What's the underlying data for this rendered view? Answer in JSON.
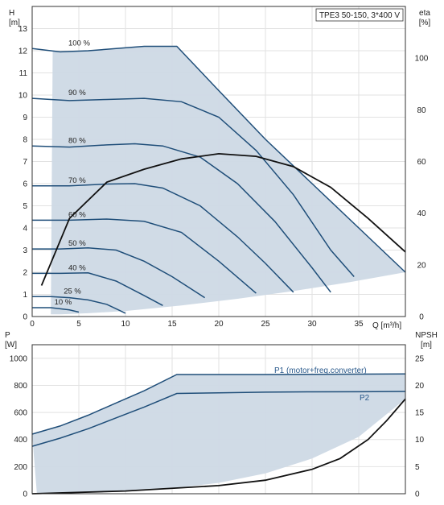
{
  "chart_data": [
    {
      "type": "line",
      "legend_box": "TPE3 50-150, 3*400 V",
      "y_label": "H",
      "y_unit": "[m]",
      "y2_label": "eta",
      "y2_unit": "[%]",
      "x_label": "Q [m³/h]",
      "xlim": [
        0,
        40
      ],
      "ylim": [
        0,
        14
      ],
      "y2lim": [
        0,
        120
      ],
      "x_ticks": [
        0,
        5,
        10,
        15,
        20,
        25,
        30,
        35
      ],
      "y_ticks": [
        0,
        1,
        2,
        3,
        4,
        5,
        6,
        7,
        8,
        9,
        10,
        11,
        12,
        13
      ],
      "y2_ticks": [
        0,
        20,
        40,
        60,
        80,
        100
      ],
      "grid": true,
      "series": [
        {
          "name": "100 %",
          "x": [
            0,
            3,
            6,
            9,
            12,
            15.5,
            20,
            25,
            30,
            35,
            40
          ],
          "y": [
            12.1,
            11.95,
            12.0,
            12.1,
            12.2,
            12.2,
            10.2,
            8.0,
            6.0,
            4.0,
            2.0
          ]
        },
        {
          "name": "90 %",
          "x": [
            0,
            4,
            8,
            12,
            16,
            20,
            24,
            28,
            32,
            34.5
          ],
          "y": [
            9.85,
            9.75,
            9.8,
            9.85,
            9.7,
            9.0,
            7.5,
            5.5,
            3.0,
            1.8
          ]
        },
        {
          "name": "80 %",
          "x": [
            0,
            4,
            8,
            11,
            14,
            18,
            22,
            26,
            30,
            32
          ],
          "y": [
            7.7,
            7.65,
            7.75,
            7.8,
            7.7,
            7.2,
            6.0,
            4.3,
            2.2,
            1.1
          ]
        },
        {
          "name": "70 %",
          "x": [
            0,
            4,
            8,
            11,
            14,
            18,
            22,
            25,
            28
          ],
          "y": [
            5.9,
            5.9,
            5.98,
            6.0,
            5.8,
            5.0,
            3.6,
            2.4,
            1.1
          ]
        },
        {
          "name": "60 %",
          "x": [
            0,
            4,
            8,
            12,
            16,
            20,
            24
          ],
          "y": [
            4.35,
            4.35,
            4.4,
            4.3,
            3.8,
            2.5,
            1.05
          ]
        },
        {
          "name": "50 %",
          "x": [
            0,
            3,
            6,
            9,
            12,
            15,
            18.5
          ],
          "y": [
            3.05,
            3.05,
            3.1,
            3.0,
            2.5,
            1.8,
            0.85
          ]
        },
        {
          "name": "40 %",
          "x": [
            0,
            3,
            6,
            9,
            12,
            14
          ],
          "y": [
            1.95,
            1.95,
            1.97,
            1.6,
            0.95,
            0.5
          ]
        },
        {
          "name": "25 %",
          "x": [
            0,
            2,
            4,
            6,
            8,
            10
          ],
          "y": [
            0.9,
            0.9,
            0.85,
            0.75,
            0.55,
            0.15
          ]
        },
        {
          "name": "10 %",
          "x": [
            0,
            1,
            2,
            3,
            4,
            5
          ],
          "y": [
            0.4,
            0.4,
            0.4,
            0.35,
            0.3,
            0.2
          ]
        },
        {
          "name": "eta",
          "x": [
            1,
            4,
            8,
            12,
            16,
            20,
            24,
            28,
            32,
            36,
            40
          ],
          "y": [
            12,
            38,
            52,
            57,
            61,
            63,
            62,
            58,
            50,
            38,
            25
          ]
        }
      ],
      "speed_labels": [
        "100 %",
        "90 %",
        "80 %",
        "70 %",
        "60 %",
        "50 %",
        "40 %",
        "25 %",
        "10 %"
      ]
    },
    {
      "type": "line",
      "y_label": "P",
      "y_unit": "[W]",
      "y2_label": "NPSH",
      "y2_unit": "[m]",
      "xlim": [
        0,
        40
      ],
      "ylim": [
        0,
        1100
      ],
      "y2lim": [
        0,
        27.5
      ],
      "y_ticks": [
        0,
        200,
        400,
        600,
        800,
        1000
      ],
      "y2_ticks": [
        0,
        5,
        10,
        15,
        20,
        25
      ],
      "grid": true,
      "annotations": [
        "P1 (motor+freq.converter)",
        "P2"
      ],
      "series": [
        {
          "name": "P1 (motor+freq.converter)",
          "x": [
            0,
            3,
            6,
            9,
            12,
            15.5,
            20,
            25,
            30,
            35,
            40
          ],
          "y": [
            440,
            500,
            580,
            670,
            760,
            880,
            880,
            880,
            882,
            883,
            885
          ]
        },
        {
          "name": "P2",
          "x": [
            0,
            3,
            6,
            9,
            12,
            15.5,
            20,
            25,
            30,
            35,
            40
          ],
          "y": [
            350,
            410,
            480,
            560,
            640,
            740,
            745,
            750,
            752,
            753,
            755
          ]
        },
        {
          "name": "NPSH",
          "x": [
            0,
            10,
            20,
            25,
            30,
            33,
            36,
            38,
            40
          ],
          "y": [
            0,
            0.5,
            1.5,
            2.5,
            4.5,
            6.5,
            10,
            13.5,
            17.5
          ]
        }
      ]
    }
  ]
}
